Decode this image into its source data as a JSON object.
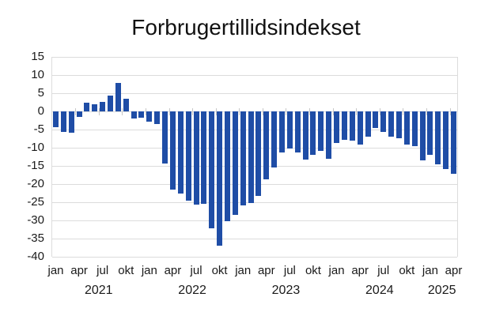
{
  "title": "Forbrugertillidsindekset",
  "colors": {
    "bar": "#1f4da6",
    "grid": "#dcdcdc",
    "text": "#1a1a1a",
    "background": "#ffffff",
    "axis_tick": "#c8c8c8"
  },
  "chart_data": {
    "type": "bar",
    "title": "Forbrugertillidsindekset",
    "xlabel": "",
    "ylabel": "",
    "ylim": [
      -40,
      15
    ],
    "ytick_step": 5,
    "ytick_labels": [
      "15",
      "10",
      "5",
      "0",
      "-5",
      "-10",
      "-15",
      "-20",
      "-25",
      "-30",
      "-35",
      "-40"
    ],
    "xtick_month_labels": [
      "jan",
      "apr",
      "jul",
      "okt"
    ],
    "year_labels": [
      "2021",
      "2022",
      "2023",
      "2024",
      "2025"
    ],
    "grid": "horizontal",
    "legend": "none",
    "categories": [
      "jan 2021",
      "feb 2021",
      "mar 2021",
      "apr 2021",
      "maj 2021",
      "jun 2021",
      "jul 2021",
      "aug 2021",
      "sep 2021",
      "okt 2021",
      "nov 2021",
      "dec 2021",
      "jan 2022",
      "feb 2022",
      "mar 2022",
      "apr 2022",
      "maj 2022",
      "jun 2022",
      "jul 2022",
      "aug 2022",
      "sep 2022",
      "okt 2022",
      "nov 2022",
      "dec 2022",
      "jan 2023",
      "feb 2023",
      "mar 2023",
      "apr 2023",
      "maj 2023",
      "jun 2023",
      "jul 2023",
      "aug 2023",
      "sep 2023",
      "okt 2023",
      "nov 2023",
      "dec 2023",
      "jan 2024",
      "feb 2024",
      "mar 2024",
      "apr 2024",
      "maj 2024",
      "jun 2024",
      "jul 2024",
      "aug 2024",
      "sep 2024",
      "okt 2024",
      "nov 2024",
      "dec 2024",
      "jan 2025",
      "feb 2025",
      "mar 2025",
      "apr 2025"
    ],
    "values": [
      -4.3,
      -5.7,
      -5.9,
      -1.6,
      2.4,
      1.9,
      2.6,
      4.3,
      7.9,
      3.4,
      -2.0,
      -1.8,
      -2.9,
      -3.5,
      -14.4,
      -21.5,
      -22.6,
      -24.6,
      -25.7,
      -25.5,
      -32.2,
      -36.9,
      -30.2,
      -28.4,
      -25.9,
      -25.2,
      -23.3,
      -18.6,
      -15.4,
      -11.2,
      -10.3,
      -11.4,
      -13.2,
      -12.0,
      -10.9,
      -13.0,
      -8.8,
      -7.8,
      -8.1,
      -9.1,
      -6.9,
      -4.5,
      -5.6,
      -7.0,
      -7.4,
      -9.2,
      -9.6,
      -13.4,
      -12.0,
      -14.6,
      -15.9,
      -17.2
    ]
  }
}
